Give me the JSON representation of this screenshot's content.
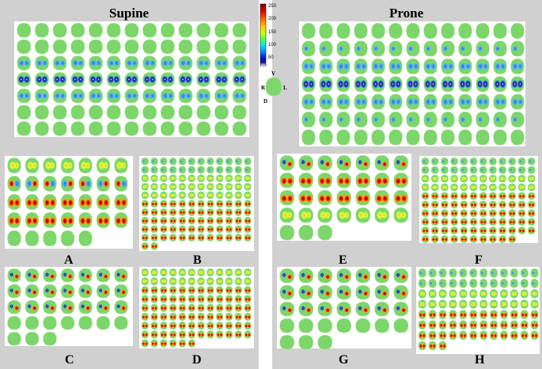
{
  "titles": {
    "supine": "Supine",
    "prone": "Prone"
  },
  "panel_labels": {
    "A": "A",
    "B": "B",
    "C": "C",
    "D": "D",
    "E": "E",
    "F": "F",
    "G": "G",
    "H": "H"
  },
  "colorbar": {
    "ticks": [
      "250",
      "200",
      "150",
      "100",
      "50"
    ],
    "colors": [
      "#7b0000",
      "#e60000",
      "#ff6a00",
      "#ffd000",
      "#c8ff00",
      "#40ff60",
      "#00e0ff",
      "#0080ff",
      "#0010d0",
      "#1a1a80",
      "#ffffff"
    ]
  },
  "orientation": {
    "top": "V",
    "bottom": "D",
    "left": "R",
    "right": "L"
  },
  "palette": {
    "background_gray": "#d0d0d0",
    "neutral_green": "#7cd66a",
    "cool_blue": "#1f4fd8",
    "warm_red": "#d81e10"
  }
}
